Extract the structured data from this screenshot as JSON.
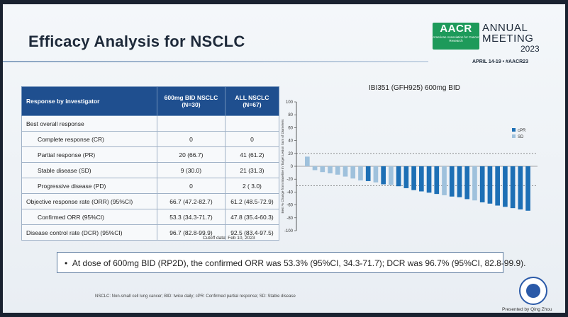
{
  "slide": {
    "title": "Efficacy Analysis for NSCLC",
    "aacr": {
      "logo_word": "AACR",
      "logo_sub": "American Association for Cancer Research",
      "annual": "ANNUAL",
      "meeting": "MEETING",
      "year": "2023",
      "dateline": "APRIL 14-19 • #AACR23"
    },
    "table": {
      "headers": [
        "Response by investigator",
        "600mg BID NSCLC (N=30)",
        "ALL NSCLC (N=67)"
      ],
      "rows": [
        {
          "label": "Best overall response",
          "col1": "",
          "col2": ""
        },
        {
          "label": "Complete response (CR)",
          "col1": "0",
          "col2": "0"
        },
        {
          "label": "Partial response (PR)",
          "col1": "20 (66.7)",
          "col2": "41 (61.2)"
        },
        {
          "label": "Stable disease (SD)",
          "col1": "9 (30.0)",
          "col2": "21 (31.3)"
        },
        {
          "label": "Progressive disease (PD)",
          "col1": "0",
          "col2": "2  ( 3.0)"
        },
        {
          "label": "Objective response rate (ORR) (95%CI)",
          "col1": "66.7 (47.2-82.7)",
          "col2": "61.2 (48.5-72.9)"
        },
        {
          "label": "Confirmed ORR (95%CI)",
          "col1": "53.3 (34.3-71.7)",
          "col2": "47.8 (35.4-60.3)"
        },
        {
          "label": "Disease control rate (DCR) (95%CI)",
          "col1": "96.7 (82.8-99.9)",
          "col2": "92.5 (83.4-97.5)"
        }
      ],
      "cutoff": "Cutoff date: Feb 10, 2023"
    },
    "note": "At dose of 600mg BID (RP2D), the confirmed ORR was 53.3% (95%CI, 34.3-71.7); DCR was 96.7% (95%CI, 82.8-99.9).",
    "footnote": "NSCLC: Non-small cell lung cancer; BID: twice daily; cPR: Confirmed partial response; SD: Stable disease",
    "presented": "Presented by Qing Zhou",
    "colors": {
      "cpr": "#1d6fb5",
      "sd": "#9fc1dc",
      "header": "#1f4f8f"
    }
  },
  "chart_data": {
    "type": "bar",
    "title": "IBI351 (GFH925) 600mg BID",
    "ylabel": "Best % Change from Baseline in Target Lesion Sum of Diameters",
    "ylim": [
      -100,
      100
    ],
    "yticks": [
      "100",
      "80",
      "60",
      "40",
      "20",
      "0",
      "-20",
      "-40",
      "-60",
      "-80",
      "-100"
    ],
    "reference_lines": [
      20,
      -30
    ],
    "legend": [
      {
        "name": "cPR",
        "color": "#1d6fb5"
      },
      {
        "name": "SD",
        "color": "#9fc1dc"
      }
    ],
    "values": [
      15,
      -6,
      -9,
      -11,
      -13,
      -16,
      -19,
      -22,
      -23,
      -25,
      -28,
      -29,
      -31,
      -34,
      -37,
      -39,
      -41,
      -43,
      -45,
      -47,
      -48,
      -51,
      -53,
      -56,
      -58,
      -61,
      -63,
      -65,
      -67,
      -69
    ],
    "series_type": [
      "SD",
      "SD",
      "SD",
      "SD",
      "SD",
      "SD",
      "SD",
      "SD",
      "cPR",
      "SD",
      "cPR",
      "SD",
      "cPR",
      "cPR",
      "cPR",
      "cPR",
      "cPR",
      "cPR",
      "SD",
      "cPR",
      "cPR",
      "cPR",
      "SD",
      "cPR",
      "cPR",
      "cPR",
      "cPR",
      "cPR",
      "cPR",
      "cPR"
    ]
  }
}
